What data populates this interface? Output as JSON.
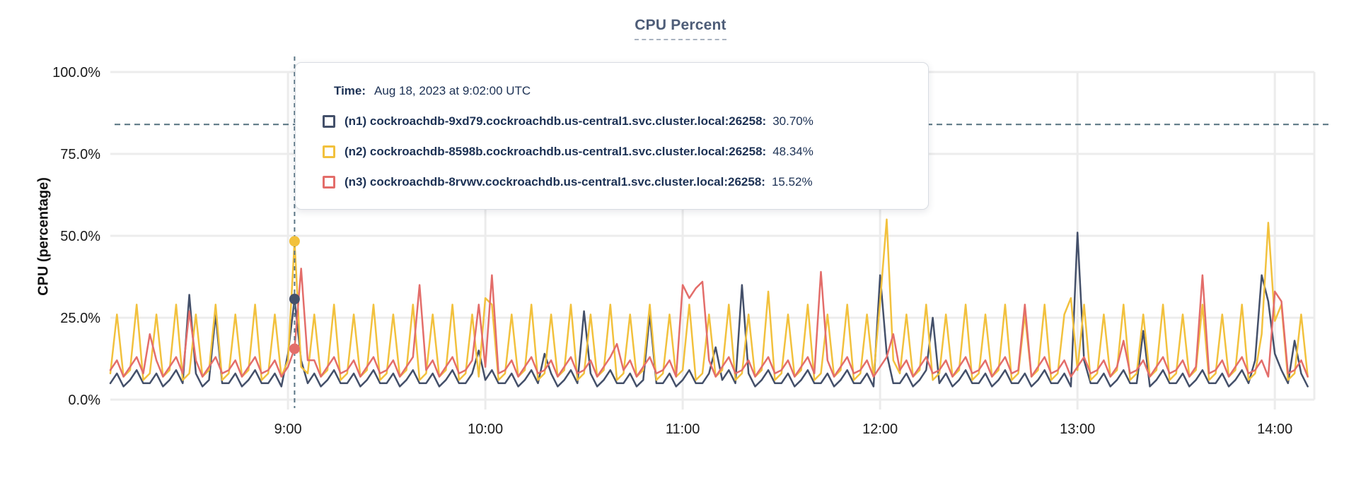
{
  "title": "CPU Percent",
  "y_axis": {
    "title": "CPU (percentage)",
    "tick_labels": [
      "0.0%",
      "25.0%",
      "50.0%",
      "75.0%",
      "100.0%"
    ],
    "tick_values": [
      0,
      25,
      50,
      75,
      100
    ]
  },
  "x_axis": {
    "tick_labels": [
      "9:00",
      "10:00",
      "11:00",
      "12:00",
      "13:00",
      "14:00"
    ],
    "tick_minutes": [
      540,
      600,
      660,
      720,
      780,
      840
    ]
  },
  "colors": {
    "title": "#4e5d78",
    "axis_text": "#1a1a1a",
    "grid": "#ececec",
    "threshold_line": "#53707e",
    "hover_line": "#5a7585",
    "tooltip_text": "#1c3154",
    "series_n1": "#44506a",
    "series_n2": "#f2c13d",
    "series_n3": "#e36d6a"
  },
  "tooltip": {
    "time_label": "Time:",
    "time_value": "Aug 18, 2023 at 9:02:00 UTC",
    "rows": [
      {
        "name": "(n1) cockroachdb-9xd79.cockroachdb.us-central1.svc.cluster.local:26258:",
        "value": "30.70%",
        "color": "#44506a"
      },
      {
        "name": "(n2) cockroachdb-8598b.cockroachdb.us-central1.svc.cluster.local:26258:",
        "value": "48.34%",
        "color": "#f2c13d"
      },
      {
        "name": "(n3) cockroachdb-8rvwv.cockroachdb.us-central1.svc.cluster.local:26258:",
        "value": "15.52%",
        "color": "#e36d6a"
      }
    ]
  },
  "chart_data": {
    "type": "line",
    "title": "CPU Percent",
    "ylabel": "CPU (percentage)",
    "ylim": [
      0,
      100
    ],
    "grid": true,
    "x_start_minutes": 486,
    "x_step_minutes": 2,
    "x_domain_minutes": [
      486,
      852
    ],
    "threshold_value": 84,
    "hover_minutes": 542,
    "hover_time": "9:02:00",
    "series": [
      {
        "name": "(n1) cockroachdb-9xd79.cockroachdb.us-central1.svc.cluster.local:26258",
        "color": "#44506a",
        "hover_value": 30.7,
        "values": [
          5,
          8,
          4,
          6,
          9,
          5,
          5,
          8,
          4,
          6,
          9,
          5,
          32,
          8,
          4,
          6,
          26,
          5,
          5,
          8,
          4,
          6,
          9,
          5,
          5,
          8,
          4,
          14,
          30.7,
          12,
          5,
          8,
          4,
          6,
          9,
          5,
          5,
          8,
          4,
          6,
          9,
          5,
          5,
          8,
          4,
          6,
          9,
          5,
          5,
          8,
          4,
          6,
          9,
          5,
          5,
          8,
          15,
          6,
          9,
          5,
          5,
          8,
          4,
          6,
          9,
          5,
          14,
          8,
          4,
          6,
          9,
          5,
          27,
          8,
          4,
          6,
          9,
          5,
          5,
          8,
          4,
          6,
          26,
          5,
          5,
          8,
          4,
          6,
          9,
          5,
          5,
          8,
          16,
          6,
          9,
          5,
          35,
          8,
          4,
          6,
          9,
          5,
          5,
          8,
          4,
          6,
          9,
          5,
          5,
          8,
          4,
          6,
          9,
          5,
          5,
          8,
          4,
          38,
          14,
          5,
          5,
          8,
          4,
          6,
          9,
          25,
          5,
          8,
          4,
          6,
          9,
          5,
          5,
          8,
          4,
          6,
          9,
          5,
          5,
          8,
          4,
          6,
          9,
          5,
          5,
          8,
          4,
          51,
          12,
          5,
          5,
          8,
          4,
          6,
          9,
          5,
          5,
          21,
          4,
          6,
          9,
          5,
          5,
          8,
          4,
          6,
          9,
          5,
          5,
          8,
          4,
          6,
          9,
          5,
          12,
          38,
          30,
          14,
          9,
          5,
          18,
          8,
          4
        ]
      },
      {
        "name": "(n2) cockroachdb-8598b.cockroachdb.us-central1.svc.cluster.local:26258",
        "color": "#f2c13d",
        "hover_value": 48.34,
        "values": [
          8,
          26,
          7,
          9,
          29,
          6,
          8,
          26,
          7,
          9,
          29,
          6,
          8,
          26,
          7,
          9,
          29,
          6,
          8,
          26,
          7,
          9,
          29,
          6,
          8,
          26,
          7,
          12,
          48.34,
          10,
          8,
          26,
          7,
          9,
          29,
          6,
          8,
          26,
          7,
          9,
          29,
          6,
          8,
          26,
          7,
          9,
          29,
          6,
          8,
          26,
          7,
          9,
          29,
          6,
          8,
          26,
          7,
          31,
          29,
          6,
          8,
          26,
          7,
          9,
          29,
          6,
          8,
          26,
          7,
          9,
          29,
          6,
          8,
          26,
          7,
          9,
          29,
          6,
          8,
          26,
          7,
          9,
          29,
          6,
          8,
          26,
          7,
          9,
          29,
          6,
          8,
          26,
          7,
          9,
          29,
          6,
          8,
          26,
          7,
          9,
          33,
          6,
          8,
          26,
          7,
          9,
          29,
          6,
          8,
          26,
          7,
          9,
          29,
          6,
          8,
          26,
          7,
          30,
          55,
          12,
          8,
          26,
          7,
          9,
          29,
          6,
          8,
          26,
          7,
          9,
          29,
          6,
          8,
          26,
          7,
          9,
          29,
          6,
          8,
          26,
          7,
          9,
          29,
          6,
          8,
          26,
          31,
          9,
          29,
          6,
          8,
          26,
          7,
          9,
          29,
          6,
          8,
          26,
          7,
          9,
          29,
          6,
          8,
          26,
          7,
          9,
          29,
          6,
          8,
          26,
          7,
          9,
          29,
          6,
          8,
          20,
          54,
          24,
          29,
          6,
          8,
          26,
          7
        ]
      },
      {
        "name": "(n3) cockroachdb-8rvwv.cockroachdb.us-central1.svc.cluster.local:26258",
        "color": "#e36d6a",
        "hover_value": 15.52,
        "values": [
          9,
          12,
          7,
          10,
          13,
          8,
          20,
          12,
          7,
          10,
          13,
          8,
          27,
          12,
          7,
          10,
          13,
          8,
          9,
          12,
          7,
          10,
          13,
          8,
          9,
          12,
          7,
          10,
          15.52,
          40,
          12,
          12,
          7,
          10,
          13,
          8,
          9,
          12,
          7,
          10,
          13,
          8,
          9,
          12,
          7,
          10,
          13,
          35,
          9,
          12,
          7,
          10,
          13,
          8,
          9,
          12,
          29,
          10,
          38,
          8,
          9,
          12,
          7,
          10,
          13,
          8,
          9,
          12,
          7,
          10,
          13,
          8,
          9,
          12,
          7,
          10,
          13,
          17,
          9,
          12,
          7,
          10,
          13,
          8,
          9,
          12,
          7,
          35,
          31,
          34,
          36,
          12,
          7,
          10,
          13,
          8,
          9,
          12,
          7,
          10,
          13,
          8,
          9,
          12,
          7,
          10,
          13,
          8,
          39,
          12,
          7,
          10,
          13,
          8,
          9,
          12,
          7,
          10,
          13,
          20,
          9,
          12,
          7,
          10,
          13,
          8,
          9,
          12,
          7,
          10,
          13,
          8,
          9,
          12,
          7,
          10,
          13,
          8,
          9,
          29,
          7,
          10,
          13,
          8,
          9,
          12,
          7,
          10,
          13,
          8,
          9,
          12,
          7,
          10,
          18,
          8,
          9,
          12,
          7,
          10,
          13,
          8,
          9,
          12,
          7,
          10,
          38,
          8,
          9,
          12,
          7,
          10,
          13,
          8,
          9,
          12,
          7,
          33,
          30,
          8,
          9,
          12,
          7
        ]
      }
    ]
  }
}
